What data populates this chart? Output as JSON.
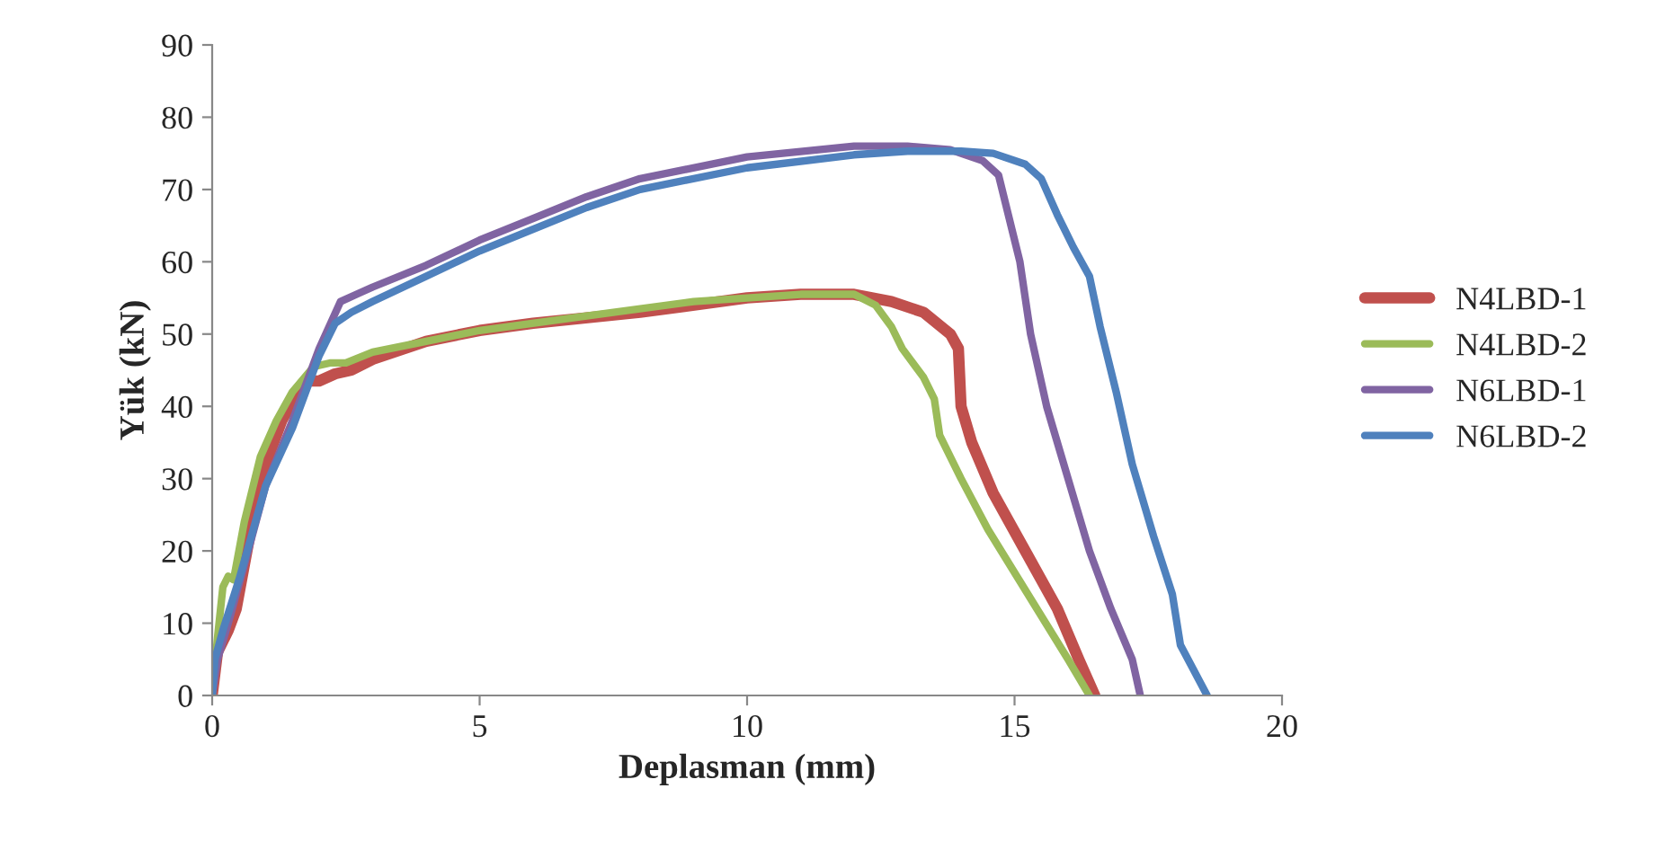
{
  "chart_data": {
    "type": "line",
    "xlabel": "Deplasman (mm)",
    "ylabel": "Yük (kN)",
    "xlim": [
      0,
      20
    ],
    "ylim": [
      0,
      90
    ],
    "xticks": [
      0,
      5,
      10,
      15,
      20
    ],
    "yticks": [
      0,
      10,
      20,
      30,
      40,
      50,
      60,
      70,
      80,
      90
    ],
    "grid": false,
    "legend": "right",
    "marker": "none",
    "line_style": "solid",
    "series": [
      {
        "name": "N4LBD-1",
        "color": "#c0504d",
        "x": [
          0,
          0.1,
          0.3,
          0.45,
          0.7,
          1.0,
          1.3,
          1.6,
          1.8,
          2.0,
          2.3,
          2.6,
          3,
          4,
          5,
          6,
          8,
          10,
          11,
          12,
          12.7,
          13.3,
          13.8,
          13.95,
          14.0,
          14.2,
          14.6,
          15.2,
          15.8,
          16.2,
          16.5
        ],
        "values": [
          0,
          6,
          9,
          12,
          22,
          32,
          38,
          42,
          43.5,
          43.5,
          44.5,
          45,
          46.5,
          49,
          50.5,
          51.5,
          53,
          55,
          55.5,
          55.5,
          54.5,
          53,
          50,
          48,
          40,
          35,
          28,
          20,
          12,
          5,
          0
        ]
      },
      {
        "name": "N4LBD-2",
        "color": "#9bbb59",
        "x": [
          0,
          0.1,
          0.2,
          0.3,
          0.4,
          0.6,
          0.9,
          1.2,
          1.5,
          1.9,
          2.2,
          2.5,
          3,
          4,
          5,
          7,
          9,
          11,
          12,
          12.4,
          12.7,
          12.9,
          13.3,
          13.5,
          13.6,
          14,
          14.5,
          15,
          15.5,
          16,
          16.4
        ],
        "values": [
          0,
          8,
          15,
          16.5,
          16,
          24,
          33,
          38,
          42,
          45.5,
          46,
          46,
          47.5,
          49,
          50.5,
          52.5,
          54.5,
          55.5,
          55.5,
          54,
          51,
          48,
          44,
          41,
          36,
          30,
          23,
          17,
          11,
          5,
          0
        ]
      },
      {
        "name": "N6LBD-1",
        "color": "#8064a2",
        "x": [
          0,
          0.1,
          0.3,
          0.6,
          1.0,
          1.5,
          2,
          2.4,
          2.7,
          3,
          4,
          5,
          6,
          7,
          8,
          10,
          12,
          13,
          13.8,
          14.4,
          14.7,
          14.9,
          15.1,
          15.3,
          15.6,
          16.0,
          16.4,
          16.8,
          17.2,
          17.35
        ],
        "values": [
          0,
          5,
          10,
          18,
          29,
          38,
          48,
          54.5,
          55.5,
          56.5,
          59.5,
          63,
          66,
          69,
          71.5,
          74.5,
          76,
          76,
          75.5,
          74,
          72,
          66,
          60,
          50,
          40,
          30,
          20,
          12,
          5,
          0
        ]
      },
      {
        "name": "N6LBD-2",
        "color": "#4f81bd",
        "x": [
          0,
          0.05,
          0.2,
          0.5,
          1.0,
          1.5,
          2,
          2.3,
          2.6,
          3,
          4,
          5,
          6,
          7,
          8,
          10,
          12,
          13,
          14,
          14.6,
          15.2,
          15.5,
          15.8,
          16.1,
          16.4,
          16.6,
          16.9,
          17.2,
          17.6,
          17.95,
          18.1,
          18.6
        ],
        "values": [
          0,
          5,
          9,
          16,
          29,
          37,
          47,
          51.5,
          53,
          54.5,
          58,
          61.5,
          64.5,
          67.5,
          70,
          73,
          74.8,
          75.3,
          75.3,
          75,
          73.5,
          71.5,
          66.5,
          62,
          58,
          51,
          42,
          32,
          22,
          14,
          7,
          0
        ]
      }
    ]
  }
}
